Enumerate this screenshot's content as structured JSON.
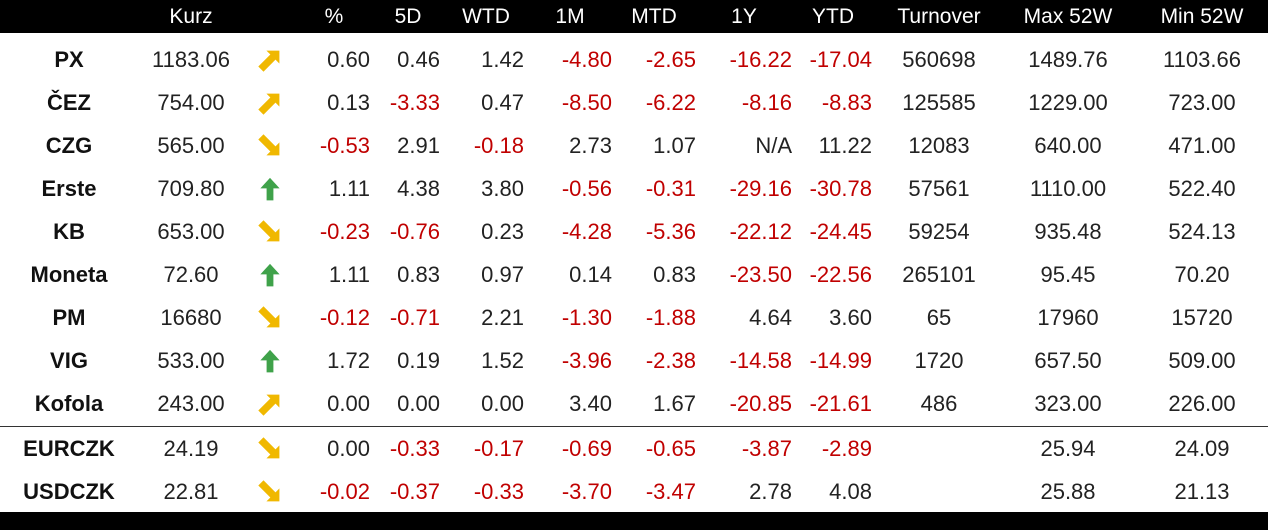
{
  "columns": [
    "",
    "Kurz",
    "",
    "%",
    "5D",
    "WTD",
    "1M",
    "MTD",
    "1Y",
    "YTD",
    "Turnover",
    "Max 52W",
    "Min 52W"
  ],
  "rows": [
    {
      "name": "PX",
      "kurz": "1183.06",
      "arrow": "arrow-up-right",
      "pct": "0.60",
      "d5": "0.46",
      "wtd": "1.42",
      "m1": "-4.80",
      "mtd": "-2.65",
      "y1": "-16.22",
      "ytd": "-17.04",
      "turnover": "560698",
      "max52": "1489.76",
      "min52": "1103.66"
    },
    {
      "name": "ČEZ",
      "kurz": "754.00",
      "arrow": "arrow-up-right",
      "pct": "0.13",
      "d5": "-3.33",
      "wtd": "0.47",
      "m1": "-8.50",
      "mtd": "-6.22",
      "y1": "-8.16",
      "ytd": "-8.83",
      "turnover": "125585",
      "max52": "1229.00",
      "min52": "723.00"
    },
    {
      "name": "CZG",
      "kurz": "565.00",
      "arrow": "arrow-down-right",
      "pct": "-0.53",
      "d5": "2.91",
      "wtd": "-0.18",
      "m1": "2.73",
      "mtd": "1.07",
      "y1": "N/A",
      "ytd": "11.22",
      "turnover": "12083",
      "max52": "640.00",
      "min52": "471.00"
    },
    {
      "name": "Erste",
      "kurz": "709.80",
      "arrow": "arrow-up",
      "pct": "1.11",
      "d5": "4.38",
      "wtd": "3.80",
      "m1": "-0.56",
      "mtd": "-0.31",
      "y1": "-29.16",
      "ytd": "-30.78",
      "turnover": "57561",
      "max52": "1110.00",
      "min52": "522.40"
    },
    {
      "name": "KB",
      "kurz": "653.00",
      "arrow": "arrow-down-right",
      "pct": "-0.23",
      "d5": "-0.76",
      "wtd": "0.23",
      "m1": "-4.28",
      "mtd": "-5.36",
      "y1": "-22.12",
      "ytd": "-24.45",
      "turnover": "59254",
      "max52": "935.48",
      "min52": "524.13"
    },
    {
      "name": "Moneta",
      "kurz": "72.60",
      "arrow": "arrow-up",
      "pct": "1.11",
      "d5": "0.83",
      "wtd": "0.97",
      "m1": "0.14",
      "mtd": "0.83",
      "y1": "-23.50",
      "ytd": "-22.56",
      "turnover": "265101",
      "max52": "95.45",
      "min52": "70.20"
    },
    {
      "name": "PM",
      "kurz": "16680",
      "arrow": "arrow-down-right",
      "pct": "-0.12",
      "d5": "-0.71",
      "wtd": "2.21",
      "m1": "-1.30",
      "mtd": "-1.88",
      "y1": "4.64",
      "ytd": "3.60",
      "turnover": "65",
      "max52": "17960",
      "min52": "15720"
    },
    {
      "name": "VIG",
      "kurz": "533.00",
      "arrow": "arrow-up",
      "pct": "1.72",
      "d5": "0.19",
      "wtd": "1.52",
      "m1": "-3.96",
      "mtd": "-2.38",
      "y1": "-14.58",
      "ytd": "-14.99",
      "turnover": "1720",
      "max52": "657.50",
      "min52": "509.00"
    },
    {
      "name": "Kofola",
      "kurz": "243.00",
      "arrow": "arrow-up-right",
      "pct": "0.00",
      "d5": "0.00",
      "wtd": "0.00",
      "m1": "3.40",
      "mtd": "1.67",
      "y1": "-20.85",
      "ytd": "-21.61",
      "turnover": "486",
      "max52": "323.00",
      "min52": "226.00"
    },
    {
      "name": "EURCZK",
      "kurz": "24.19",
      "arrow": "arrow-down-right",
      "pct": "0.00",
      "d5": "-0.33",
      "wtd": "-0.17",
      "m1": "-0.69",
      "mtd": "-0.65",
      "y1": "-3.87",
      "ytd": "-2.89",
      "turnover": "",
      "max52": "25.94",
      "min52": "24.09"
    },
    {
      "name": "USDCZK",
      "kurz": "22.81",
      "arrow": "arrow-down-right",
      "pct": "-0.02",
      "d5": "-0.37",
      "wtd": "-0.33",
      "m1": "-3.70",
      "mtd": "-3.47",
      "y1": "2.78",
      "ytd": "4.08",
      "turnover": "",
      "max52": "25.88",
      "min52": "21.13"
    }
  ],
  "colors": {
    "header_bg": "#000000",
    "header_text": "#ffffff",
    "text": "#222222",
    "negative": "#c00000",
    "pct_negative": "#c00000",
    "arrow_up": "#3fa24a",
    "arrow_up_right": "#f0b800",
    "arrow_down_right": "#f0b800"
  }
}
